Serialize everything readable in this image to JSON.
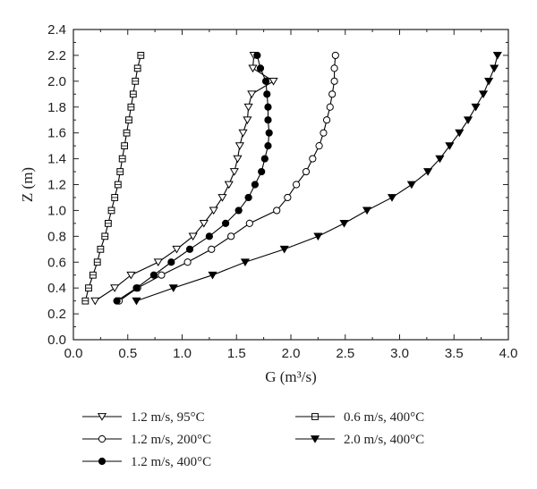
{
  "chart_data": {
    "type": "line",
    "xlabel": "G (m³/s)",
    "ylabel": "Z (m)",
    "xlim": [
      0.0,
      4.0
    ],
    "ylim": [
      0.0,
      2.4
    ],
    "x_ticks": [
      "0.0",
      "0.5",
      "1.0",
      "1.5",
      "2.0",
      "2.5",
      "3.0",
      "3.5",
      "4.0"
    ],
    "y_ticks": [
      "0.0",
      "0.2",
      "0.4",
      "0.6",
      "0.8",
      "1.0",
      "1.2",
      "1.4",
      "1.6",
      "1.8",
      "2.0",
      "2.2",
      "2.4"
    ],
    "grid": false,
    "legend_position": "bottom",
    "z_levels": [
      0.3,
      0.4,
      0.5,
      0.6,
      0.7,
      0.8,
      0.9,
      1.0,
      1.1,
      1.2,
      1.3,
      1.4,
      1.5,
      1.6,
      1.7,
      1.8,
      1.9,
      2.0,
      2.1,
      2.2
    ],
    "series": [
      {
        "name": "1.2 m/s, 95°C",
        "marker": "triangle-down-open",
        "g": [
          0.2,
          0.38,
          0.53,
          0.78,
          0.95,
          1.1,
          1.2,
          1.29,
          1.37,
          1.43,
          1.48,
          1.51,
          1.53,
          1.56,
          1.6,
          1.61,
          1.64,
          1.84,
          1.65,
          1.66
        ]
      },
      {
        "name": "1.2 m/s, 200°C",
        "marker": "circle-open",
        "g": [
          0.42,
          0.59,
          0.81,
          1.05,
          1.27,
          1.45,
          1.62,
          1.87,
          1.97,
          2.05,
          2.14,
          2.2,
          2.26,
          2.3,
          2.33,
          2.36,
          2.38,
          2.4,
          2.4,
          2.41
        ]
      },
      {
        "name": "1.2 m/s, 400°C",
        "marker": "circle-filled",
        "g": [
          0.4,
          0.58,
          0.74,
          0.9,
          1.07,
          1.25,
          1.4,
          1.52,
          1.61,
          1.67,
          1.73,
          1.76,
          1.79,
          1.8,
          1.79,
          1.79,
          1.78,
          1.77,
          1.72,
          1.69
        ]
      },
      {
        "name": "0.6 m/s, 400°C",
        "marker": "square-open",
        "g": [
          0.11,
          0.14,
          0.18,
          0.22,
          0.25,
          0.29,
          0.32,
          0.35,
          0.38,
          0.41,
          0.43,
          0.45,
          0.47,
          0.49,
          0.51,
          0.53,
          0.55,
          0.57,
          0.59,
          0.62
        ]
      },
      {
        "name": "2.0 m/s, 400°C",
        "marker": "triangle-down-filled",
        "g": [
          0.58,
          0.92,
          1.28,
          1.58,
          1.94,
          2.25,
          2.49,
          2.7,
          2.93,
          3.11,
          3.26,
          3.37,
          3.46,
          3.55,
          3.63,
          3.7,
          3.77,
          3.82,
          3.87,
          3.9
        ]
      }
    ]
  }
}
